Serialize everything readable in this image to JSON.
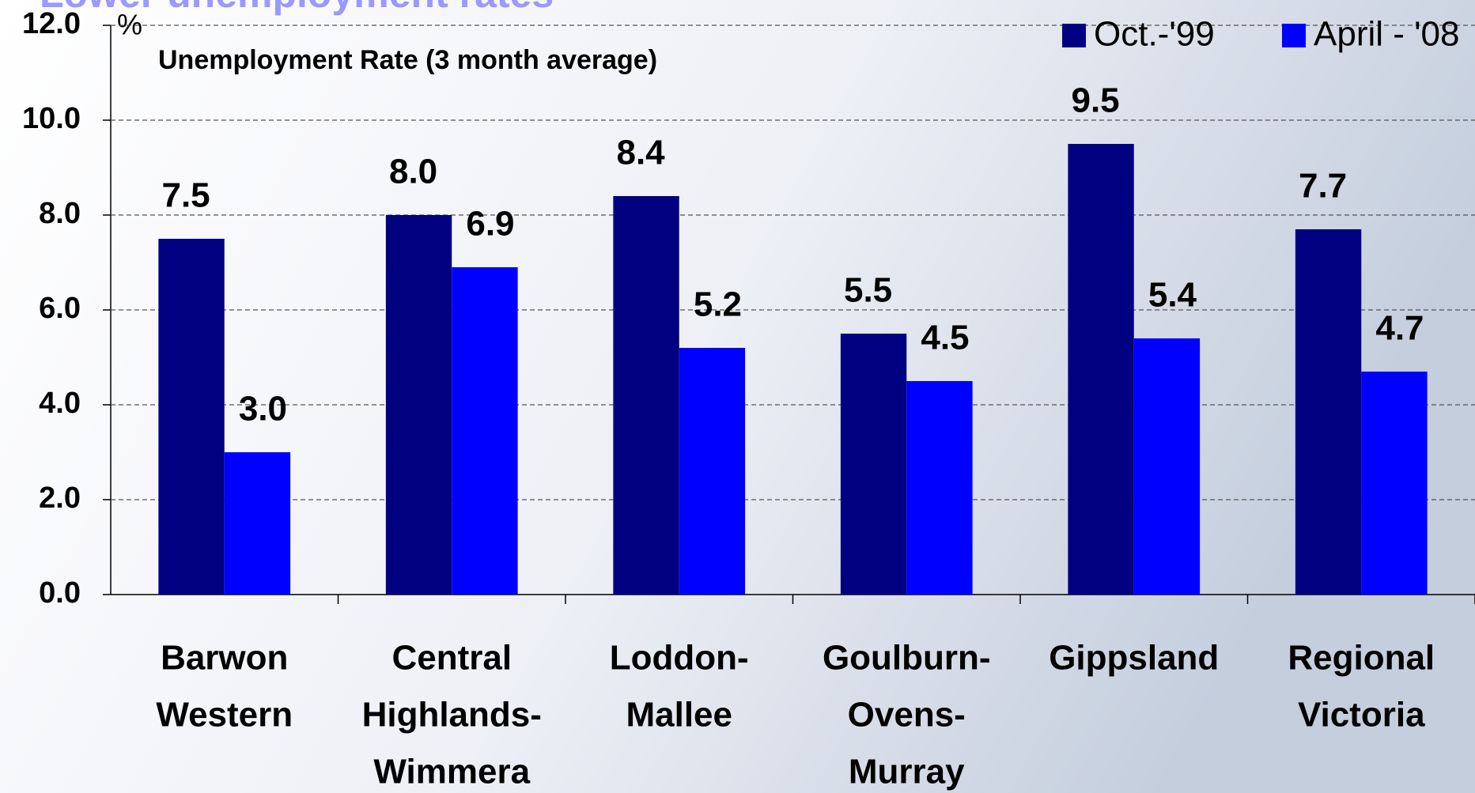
{
  "chart_data": {
    "type": "bar",
    "title": "Lower unemployment rates",
    "subtitle": "Unemployment Rate (3 month average)",
    "y_unit": "%",
    "categories": [
      [
        "Barwon",
        "Western"
      ],
      [
        "Central",
        "Highlands-",
        "Wimmera"
      ],
      [
        "Loddon-",
        "Mallee"
      ],
      [
        "Goulburn-",
        "Ovens-",
        "Murray"
      ],
      [
        "Gippsland"
      ],
      [
        "Regional",
        "Victoria"
      ]
    ],
    "series": [
      {
        "name": "Oct.-'99",
        "color": "#000080",
        "values": [
          7.5,
          8.0,
          8.4,
          5.5,
          9.5,
          7.7
        ],
        "value_labels": [
          "7.5",
          "8.0",
          "8.4",
          "5.5",
          "9.5",
          "7.7"
        ]
      },
      {
        "name": "April - '08",
        "color": "#0000ff",
        "values": [
          3.0,
          6.9,
          5.2,
          4.5,
          5.4,
          4.7
        ],
        "value_labels": [
          "3.0",
          "6.9",
          "5.2",
          "4.5",
          "5.4",
          "4.7"
        ]
      }
    ],
    "ylim": [
      0,
      12
    ],
    "yticks": [
      {
        "value": 0,
        "label": "0.0"
      },
      {
        "value": 2,
        "label": "2.0"
      },
      {
        "value": 4,
        "label": "4.0"
      },
      {
        "value": 6,
        "label": "6.0"
      },
      {
        "value": 8,
        "label": "8.0"
      },
      {
        "value": 10,
        "label": "10.0"
      },
      {
        "value": 12,
        "label": "12.0"
      }
    ],
    "grid": true,
    "legend": "top-right"
  }
}
